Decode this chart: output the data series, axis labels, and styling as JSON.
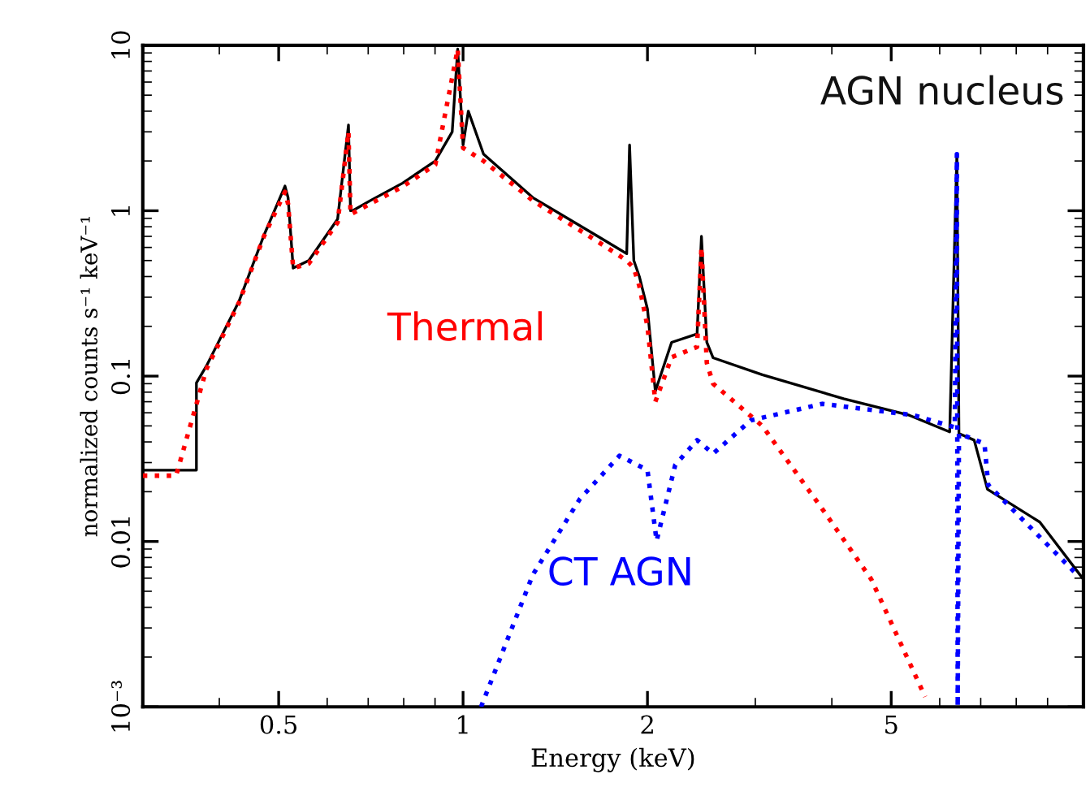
{
  "chart_data": {
    "type": "line",
    "xlabel": "Energy (keV)",
    "ylabel": "normalized counts s⁻¹ keV⁻¹",
    "log": "xy",
    "xlim": [
      0.3,
      10.3
    ],
    "ylim": [
      0.001,
      10
    ],
    "xticks": [
      0.5,
      1,
      2,
      5
    ],
    "yticks": [
      {
        "value": 0.001,
        "label": "10⁻³"
      },
      0.01,
      0.1,
      1,
      10
    ],
    "grid": false,
    "annotations": [
      "AGN nucleus"
    ],
    "series": [
      {
        "color": "#000000",
        "line_style": "solid",
        "x": [
          0.3,
          0.367,
          0.367,
          0.381,
          0.431,
          0.473,
          0.512,
          0.518,
          0.528,
          0.56,
          0.624,
          0.65,
          0.655,
          0.66,
          0.705,
          0.797,
          0.901,
          0.96,
          0.98,
          1.0,
          1.02,
          1.08,
          1.3,
          1.66,
          1.85,
          1.87,
          1.9,
          1.94,
          2.0,
          2.06,
          2.19,
          2.41,
          2.45,
          2.5,
          2.56,
          3.08,
          4.18,
          5.35,
          6.23,
          6.4,
          6.45,
          6.83,
          7.18,
          8.74,
          10.3
        ],
        "values": [
          0.027,
          0.027,
          0.091,
          0.115,
          0.285,
          0.71,
          1.41,
          1.2,
          0.45,
          0.5,
          0.89,
          3.3,
          1.0,
          1.0,
          1.15,
          1.47,
          2.0,
          3.0,
          9.5,
          2.5,
          4.0,
          2.2,
          1.2,
          0.7,
          0.55,
          2.5,
          0.5,
          0.4,
          0.255,
          0.081,
          0.16,
          0.18,
          0.7,
          0.16,
          0.129,
          0.102,
          0.073,
          0.058,
          0.046,
          2.2,
          0.045,
          0.041,
          0.0207,
          0.0131,
          0.0059
        ]
      },
      {
        "name": "Thermal",
        "color": "#ff0000",
        "line_style": "dotted",
        "x": [
          0.3,
          0.34,
          0.381,
          0.431,
          0.473,
          0.512,
          0.518,
          0.528,
          0.56,
          0.624,
          0.65,
          0.655,
          0.705,
          0.797,
          0.901,
          0.98,
          1.0,
          1.08,
          1.3,
          1.66,
          1.85,
          1.9,
          1.94,
          2.0,
          2.06,
          2.19,
          2.41,
          2.45,
          2.5,
          2.56,
          3.08,
          3.86,
          4.64,
          5.68
        ],
        "values": [
          0.025,
          0.025,
          0.11,
          0.28,
          0.7,
          1.3,
          1.1,
          0.45,
          0.48,
          0.85,
          3.0,
          0.95,
          1.1,
          1.4,
          1.9,
          9.5,
          2.4,
          2.0,
          1.15,
          0.65,
          0.5,
          0.45,
          0.35,
          0.2,
          0.07,
          0.13,
          0.15,
          0.6,
          0.12,
          0.09,
          0.05,
          0.0157,
          0.0059,
          0.00115
        ]
      },
      {
        "name": "CT AGN",
        "color": "#0000ff",
        "line_style": "dotted",
        "x": [
          1.07,
          1.3,
          1.55,
          1.8,
          2.0,
          2.07,
          2.22,
          2.41,
          2.56,
          2.95,
          3.86,
          5.44,
          6.35,
          6.4,
          6.42,
          6.45,
          7.1,
          7.2,
          10.1
        ],
        "values": [
          0.001,
          0.0063,
          0.018,
          0.033,
          0.027,
          0.0101,
          0.029,
          0.041,
          0.034,
          0.054,
          0.068,
          0.058,
          0.049,
          2.2,
          0.001,
          0.045,
          0.039,
          0.022,
          0.0062
        ]
      }
    ]
  }
}
